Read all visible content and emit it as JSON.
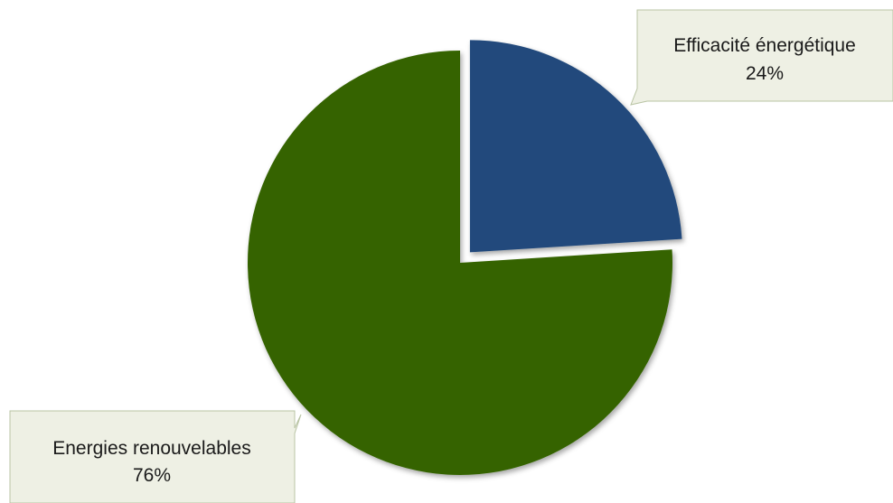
{
  "chart_data": {
    "type": "pie",
    "title": "",
    "exploded_slice": "Efficacité énergétique",
    "slices": [
      {
        "label": "Efficacité énergétique",
        "value": 24,
        "value_label": "24%",
        "color": "#214A7C"
      },
      {
        "label": "Energies renouvelables",
        "value": 76,
        "value_label": "76%",
        "color": "#346405"
      }
    ],
    "label_box_color": "#EEF0E4",
    "label_box_border_color": "#B9C4A4"
  }
}
